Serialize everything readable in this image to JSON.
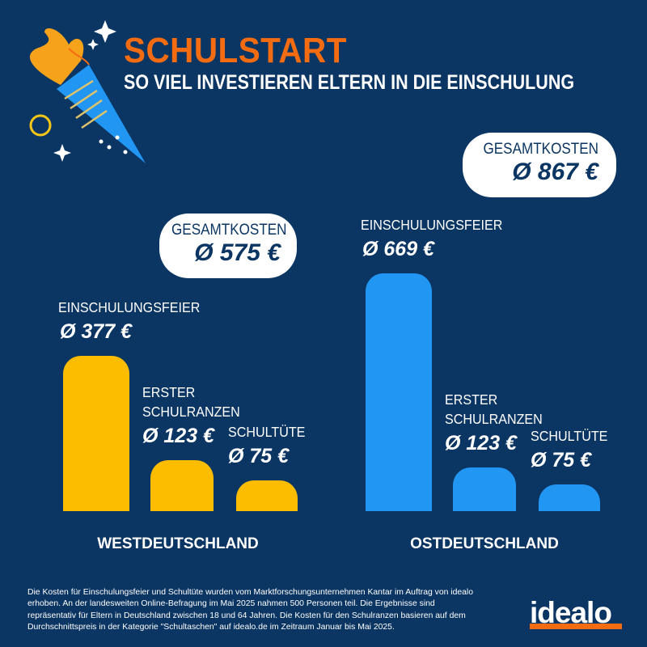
{
  "title": "SCHULSTART",
  "subtitle": "SO VIEL INVESTIEREN ELTERN IN DIE EINSCHULUNG",
  "colors": {
    "background": "#0b3562",
    "accent": "#f36c12",
    "west": "#fcbd00",
    "east": "#2196f3"
  },
  "chart_data": [
    {
      "type": "bar",
      "region": "WESTDEUTSCHLAND",
      "total_label": "GESAMTKOSTEN",
      "total_value": "Ø 575 €",
      "categories": [
        "EINSCHULUNGSFEIER",
        "ERSTER\nSCHULRANZEN",
        "SCHULTÜTE"
      ],
      "values": [
        377,
        123,
        75
      ],
      "value_labels": [
        "Ø 377 €",
        "Ø 123 €",
        "Ø 75 €"
      ],
      "unit": "€",
      "ylim": [
        0,
        590
      ]
    },
    {
      "type": "bar",
      "region": "OSTDEUTSCHLAND",
      "total_label": "GESAMTKOSTEN",
      "total_value": "Ø 867 €",
      "categories": [
        "EINSCHULUNGSFEIER",
        "ERSTER\nSCHULRANZEN",
        "SCHULTÜTE"
      ],
      "values": [
        669,
        123,
        75
      ],
      "value_labels": [
        "Ø 669 €",
        "Ø 123 €",
        "Ø 75 €"
      ],
      "unit": "€",
      "ylim": [
        0,
        682
      ]
    }
  ],
  "footnote": "Die Kosten für Einschulungsfeier und Schultüte wurden vom Marktforschungsunternehmen Kantar im Auftrag von idealo erhoben. An der landesweiten Online-Befragung im Mai 2025 nahmen 500 Personen teil. Die Ergebnisse sind repräsentativ für Eltern in Deutschland zwischen 18 und 64 Jahren. Die Kosten für den Schulranzen basieren auf dem Durchschnittspreis in der Kategorie \"Schultaschen\" auf idealo.de im Zeitraum Januar bis Mai 2025.",
  "logo": "idealo"
}
